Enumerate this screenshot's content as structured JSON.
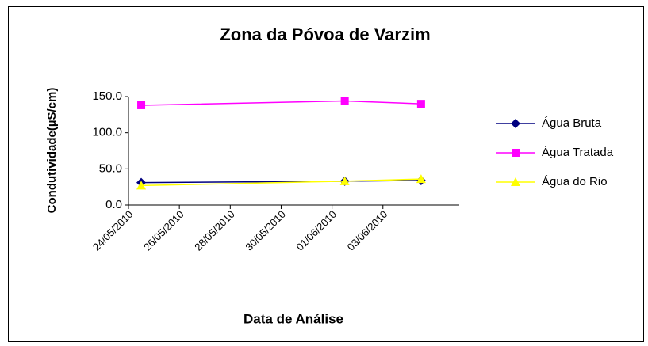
{
  "chart_data": {
    "type": "line",
    "title": "Zona da Póvoa de Varzim",
    "x_label": "Data de Análise",
    "y_label": "Condutividade(µS/cm)",
    "x": [
      "24/05/2010",
      "01/06/2010",
      "04/06/2010"
    ],
    "xlim": [
      "24/05/2010",
      "06/06/2010"
    ],
    "xticks": [
      "24/05/2010",
      "26/05/2010",
      "28/05/2010",
      "30/05/2010",
      "01/06/2010",
      "03/06/2010"
    ],
    "ylim": [
      0,
      150
    ],
    "yticks": [
      {
        "value": 0,
        "label": "0.0"
      },
      {
        "value": 50,
        "label": "50.0"
      },
      {
        "value": 100,
        "label": "100.0"
      },
      {
        "value": 150,
        "label": "150.0"
      }
    ],
    "grid": false,
    "legend": "right",
    "series": [
      {
        "name": "Água Bruta",
        "color": "#000080",
        "marker": "diamond",
        "values": [
          31,
          33,
          34
        ]
      },
      {
        "name": "Água Tratada",
        "color": "#ff00ff",
        "marker": "square",
        "values": [
          138,
          144,
          140
        ]
      },
      {
        "name": "Água do Rio",
        "color": "#ffff00",
        "marker": "triangle",
        "values": [
          27,
          33,
          36
        ]
      }
    ]
  }
}
